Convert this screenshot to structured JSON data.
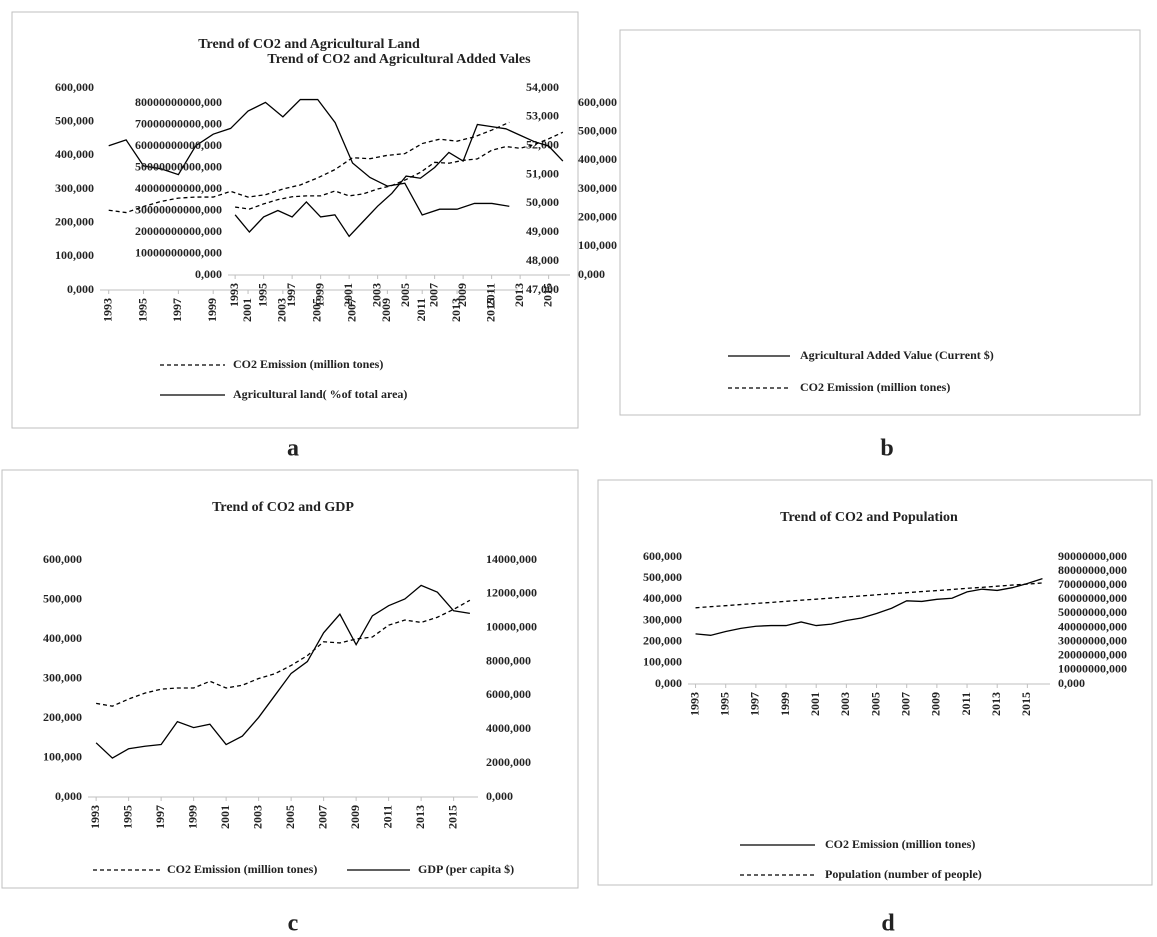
{
  "chart_data": [
    {
      "type": "line",
      "panel_label": "a",
      "title": "Trend of CO2 and Agricultural Land",
      "legend": "bottom",
      "x": [
        1993,
        1994,
        1995,
        1996,
        1997,
        1998,
        1999,
        2000,
        2001,
        2002,
        2003,
        2004,
        2005,
        2006,
        2007,
        2008,
        2009,
        2010,
        2011,
        2012,
        2013,
        2014,
        2015,
        2016
      ],
      "xlim": [
        1993,
        2016
      ],
      "xticks": [
        1993,
        1995,
        1997,
        1999,
        2001,
        2003,
        2005,
        2007,
        2009,
        2011,
        2013,
        2015
      ],
      "ylim": [
        0,
        600
      ],
      "yticks": [
        {
          "value": 0,
          "label": "0,000"
        },
        {
          "value": 100,
          "label": "100,000"
        },
        {
          "value": 200,
          "label": "200,000"
        },
        {
          "value": 300,
          "label": "300,000"
        },
        {
          "value": 400,
          "label": "400,000"
        },
        {
          "value": 500,
          "label": "500,000"
        },
        {
          "value": 600,
          "label": "600,000"
        }
      ],
      "y2lim": [
        47,
        54
      ],
      "y2ticks": [
        {
          "value": 47,
          "label": "47,000"
        },
        {
          "value": 48,
          "label": "48,000"
        },
        {
          "value": 49,
          "label": "49,000"
        },
        {
          "value": 50,
          "label": "50,000"
        },
        {
          "value": 51,
          "label": "51,000"
        },
        {
          "value": 52,
          "label": "52,000"
        },
        {
          "value": 53,
          "label": "53,000"
        },
        {
          "value": 54,
          "label": "54,000"
        }
      ],
      "series": [
        {
          "name": "CO2 Emission (million tones)",
          "color": "#000000",
          "dash": "dashed",
          "values": [
            237,
            230,
            248,
            263,
            273,
            276,
            276,
            293,
            276,
            283,
            300,
            312,
            333,
            358,
            393,
            390,
            400,
            405,
            435,
            448,
            442,
            455,
            475,
            498
          ]
        },
        {
          "name": "Agricultural land( %of total area)",
          "color": "#000000",
          "dash": "solid",
          "axis": "y2",
          "values": [
            52.0,
            52.2,
            51.3,
            51.2,
            51.0,
            52.0,
            52.4,
            52.6,
            53.2,
            53.5,
            53.0,
            53.6,
            53.6,
            52.8,
            51.4,
            50.9,
            50.6,
            50.7,
            49.6,
            49.8,
            49.8,
            50.0,
            50.0,
            49.9
          ]
        }
      ]
    },
    {
      "type": "line",
      "panel_label": "b",
      "title": "Trend of CO2 and Agricultural Added Vales",
      "legend": "bottom",
      "x": [
        1993,
        1994,
        1995,
        1996,
        1997,
        1998,
        1999,
        2000,
        2001,
        2002,
        2003,
        2004,
        2005,
        2006,
        2007,
        2008,
        2009,
        2010,
        2011,
        2012,
        2013,
        2014,
        2015,
        2016
      ],
      "xlim": [
        1993,
        2016
      ],
      "xticks": [
        1993,
        1995,
        1997,
        1999,
        2001,
        2003,
        2005,
        2007,
        2009,
        2011,
        2013,
        2015
      ],
      "ylim": [
        0,
        80000000000
      ],
      "yticks": [
        {
          "value": 0,
          "label": "0,000"
        },
        {
          "value": 10000000000,
          "label": "10000000000,000"
        },
        {
          "value": 20000000000,
          "label": "20000000000,000"
        },
        {
          "value": 30000000000,
          "label": "30000000000,000"
        },
        {
          "value": 40000000000,
          "label": "40000000000,000"
        },
        {
          "value": 50000000000,
          "label": "50000000000,000"
        },
        {
          "value": 60000000000,
          "label": "60000000000,000"
        },
        {
          "value": 70000000000,
          "label": "70000000000,000"
        },
        {
          "value": 80000000000,
          "label": "80000000000,000"
        }
      ],
      "y2lim": [
        0,
        600
      ],
      "y2ticks": [
        {
          "value": 0,
          "label": "0,000"
        },
        {
          "value": 100,
          "label": "100,000"
        },
        {
          "value": 200,
          "label": "200,000"
        },
        {
          "value": 300,
          "label": "300,000"
        },
        {
          "value": 400,
          "label": "400,000"
        },
        {
          "value": 500,
          "label": "500,000"
        },
        {
          "value": 600,
          "label": "600,000"
        }
      ],
      "series": [
        {
          "name": "Agricultural Added Value (Current $)",
          "color": "#000000",
          "dash": "solid",
          "values": [
            28000000000,
            20000000000,
            27000000000,
            30000000000,
            27000000000,
            34000000000,
            27000000000,
            28000000000,
            18000000000,
            25000000000,
            32000000000,
            38000000000,
            46000000000,
            45000000000,
            50000000000,
            57000000000,
            53000000000,
            70000000000,
            69000000000,
            68000000000,
            65000000000,
            62000000000,
            60000000000,
            53000000000
          ]
        },
        {
          "name": "CO2 Emission (million tones)",
          "color": "#000000",
          "dash": "dashed",
          "axis": "y2",
          "values": [
            237,
            230,
            248,
            263,
            273,
            276,
            276,
            293,
            276,
            283,
            300,
            312,
            333,
            358,
            393,
            390,
            400,
            405,
            435,
            448,
            442,
            455,
            475,
            498
          ]
        }
      ]
    },
    {
      "type": "line",
      "panel_label": "c",
      "title": "Trend of CO2 and GDP",
      "legend": "bottom",
      "x": [
        1993,
        1994,
        1995,
        1996,
        1997,
        1998,
        1999,
        2000,
        2001,
        2002,
        2003,
        2004,
        2005,
        2006,
        2007,
        2008,
        2009,
        2010,
        2011,
        2012,
        2013,
        2014,
        2015,
        2016
      ],
      "xlim": [
        1993,
        2016
      ],
      "xticks": [
        1993,
        1995,
        1997,
        1999,
        2001,
        2003,
        2005,
        2007,
        2009,
        2011,
        2013,
        2015
      ],
      "ylim": [
        0,
        600
      ],
      "yticks": [
        {
          "value": 0,
          "label": "0,000"
        },
        {
          "value": 100,
          "label": "100,000"
        },
        {
          "value": 200,
          "label": "200,000"
        },
        {
          "value": 300,
          "label": "300,000"
        },
        {
          "value": 400,
          "label": "400,000"
        },
        {
          "value": 500,
          "label": "500,000"
        },
        {
          "value": 600,
          "label": "600,000"
        }
      ],
      "y2lim": [
        0,
        14000
      ],
      "y2ticks": [
        {
          "value": 0,
          "label": "0,000"
        },
        {
          "value": 2000,
          "label": "2000,000"
        },
        {
          "value": 4000,
          "label": "4000,000"
        },
        {
          "value": 6000,
          "label": "6000,000"
        },
        {
          "value": 8000,
          "label": "8000,000"
        },
        {
          "value": 10000,
          "label": "10000,000"
        },
        {
          "value": 12000,
          "label": "12000,000"
        },
        {
          "value": 14000,
          "label": "14000,000"
        }
      ],
      "series": [
        {
          "name": "CO2 Emission (million tones)",
          "color": "#000000",
          "dash": "dashed",
          "values": [
            237,
            230,
            248,
            263,
            273,
            276,
            276,
            293,
            276,
            283,
            300,
            312,
            333,
            358,
            393,
            390,
            400,
            405,
            435,
            448,
            442,
            455,
            475,
            498
          ]
        },
        {
          "name": "GDP (per capita $)",
          "color": "#000000",
          "dash": "solid",
          "axis": "y2",
          "values": [
            3200,
            2300,
            2850,
            3000,
            3100,
            4450,
            4100,
            4300,
            3100,
            3600,
            4700,
            6000,
            7300,
            8000,
            9700,
            10800,
            9000,
            10700,
            11300,
            11700,
            12500,
            12100,
            11000,
            10850
          ]
        }
      ]
    },
    {
      "type": "line",
      "panel_label": "d",
      "title": "Trend of CO2 and Population",
      "legend": "bottom",
      "x": [
        1993,
        1994,
        1995,
        1996,
        1997,
        1998,
        1999,
        2000,
        2001,
        2002,
        2003,
        2004,
        2005,
        2006,
        2007,
        2008,
        2009,
        2010,
        2011,
        2012,
        2013,
        2014,
        2015,
        2016
      ],
      "xlim": [
        1993,
        2016
      ],
      "xticks": [
        1993,
        1995,
        1997,
        1999,
        2001,
        2003,
        2005,
        2007,
        2009,
        2011,
        2013,
        2015
      ],
      "ylim": [
        0,
        600
      ],
      "yticks": [
        {
          "value": 0,
          "label": "0,000"
        },
        {
          "value": 100,
          "label": "100,000"
        },
        {
          "value": 200,
          "label": "200,000"
        },
        {
          "value": 300,
          "label": "300,000"
        },
        {
          "value": 400,
          "label": "400,000"
        },
        {
          "value": 500,
          "label": "500,000"
        },
        {
          "value": 600,
          "label": "600,000"
        }
      ],
      "y2lim": [
        0,
        90000000
      ],
      "y2ticks": [
        {
          "value": 0,
          "label": "0,000"
        },
        {
          "value": 10000000,
          "label": "10000000,000"
        },
        {
          "value": 20000000,
          "label": "20000000,000"
        },
        {
          "value": 30000000,
          "label": "30000000,000"
        },
        {
          "value": 40000000,
          "label": "40000000,000"
        },
        {
          "value": 50000000,
          "label": "50000000,000"
        },
        {
          "value": 60000000,
          "label": "60000000,000"
        },
        {
          "value": 70000000,
          "label": "70000000,000"
        },
        {
          "value": 80000000,
          "label": "80000000,000"
        },
        {
          "value": 90000000,
          "label": "90000000,000"
        }
      ],
      "series": [
        {
          "name": "CO2 Emission (million tones)",
          "color": "#000000",
          "dash": "solid",
          "values": [
            237,
            230,
            248,
            263,
            273,
            276,
            276,
            293,
            276,
            283,
            300,
            312,
            333,
            358,
            393,
            390,
            400,
            405,
            435,
            448,
            442,
            455,
            475,
            498
          ]
        },
        {
          "name": "Population (number of people)",
          "color": "#000000",
          "dash": "dashed",
          "axis": "y2",
          "values": [
            54000000,
            54800000,
            55500000,
            56300000,
            57100000,
            57800000,
            58600000,
            59400000,
            60100000,
            60900000,
            61700000,
            62400000,
            63200000,
            64000000,
            64700000,
            65500000,
            66200000,
            67000000,
            67800000,
            68500000,
            69300000,
            70100000,
            70800000,
            71600000
          ]
        }
      ]
    }
  ]
}
